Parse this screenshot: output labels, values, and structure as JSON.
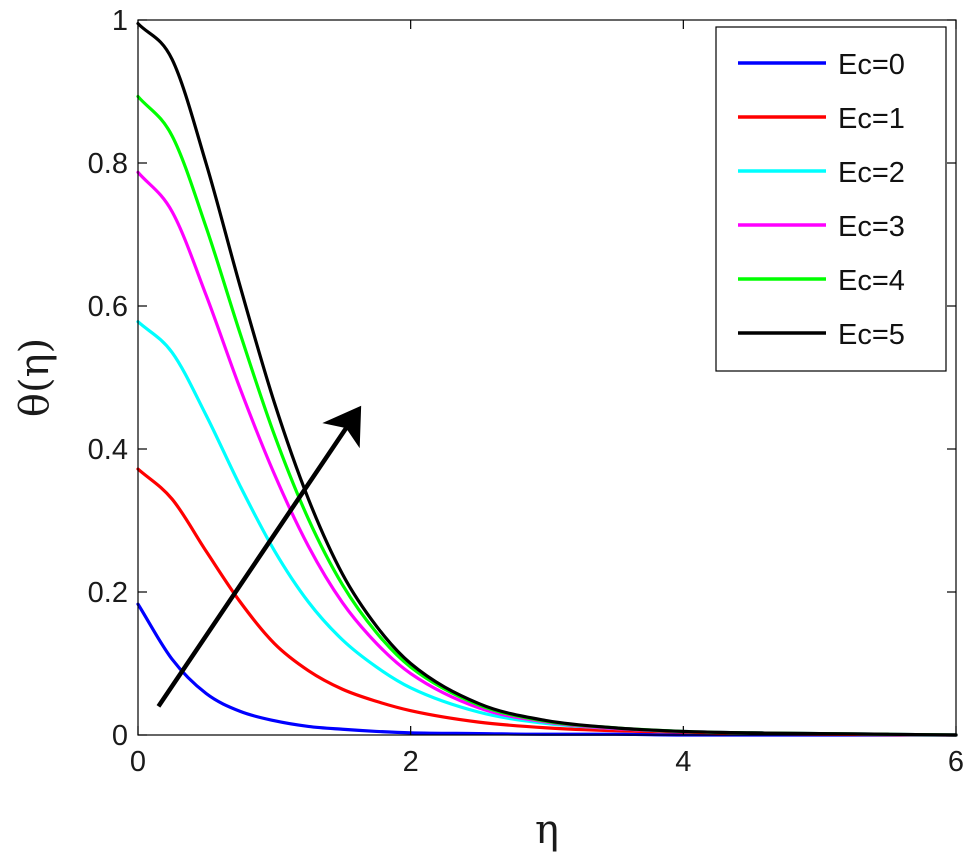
{
  "chart_data": {
    "type": "line",
    "title": "",
    "xlabel": "η",
    "ylabel": "θ(η)",
    "xlim": [
      0,
      6
    ],
    "ylim": [
      0,
      1
    ],
    "xticks": [
      0,
      2,
      4,
      6
    ],
    "xtick_labels": [
      "0",
      "2",
      "4",
      "6"
    ],
    "yticks": [
      0,
      0.2,
      0.4,
      0.6,
      0.8,
      1
    ],
    "ytick_labels": [
      "0",
      "0.2",
      "0.4",
      "0.6",
      "0.8",
      "1"
    ],
    "grid": false,
    "legend_position": "top-right",
    "x": [
      0,
      0.25,
      0.5,
      0.75,
      1,
      1.25,
      1.5,
      1.75,
      2,
      2.5,
      3,
      3.5,
      4,
      4.5,
      5,
      6
    ],
    "series": [
      {
        "name": "Ec=0",
        "color": "#0000ff",
        "values": [
          0.183,
          0.106,
          0.058,
          0.033,
          0.02,
          0.012,
          0.008,
          0.005,
          0.003,
          0.002,
          0.001,
          0.001,
          0.0,
          0.0,
          0.0,
          0.0
        ]
      },
      {
        "name": "Ec=1",
        "color": "#ff0000",
        "values": [
          0.372,
          0.33,
          0.257,
          0.186,
          0.128,
          0.09,
          0.064,
          0.047,
          0.034,
          0.018,
          0.01,
          0.006,
          0.004,
          0.002,
          0.001,
          0.0
        ]
      },
      {
        "name": "Ec=2",
        "color": "#00ffff",
        "values": [
          0.578,
          0.535,
          0.447,
          0.348,
          0.258,
          0.186,
          0.133,
          0.095,
          0.066,
          0.032,
          0.016,
          0.009,
          0.005,
          0.003,
          0.002,
          0.0
        ]
      },
      {
        "name": "Ec=3",
        "color": "#ff00ff",
        "values": [
          0.787,
          0.732,
          0.615,
          0.484,
          0.365,
          0.264,
          0.185,
          0.128,
          0.086,
          0.038,
          0.018,
          0.009,
          0.005,
          0.003,
          0.002,
          0.0
        ]
      },
      {
        "name": "Ec=4",
        "color": "#00ff00",
        "values": [
          0.893,
          0.838,
          0.71,
          0.561,
          0.42,
          0.302,
          0.21,
          0.143,
          0.095,
          0.042,
          0.019,
          0.01,
          0.005,
          0.003,
          0.002,
          0.0
        ]
      },
      {
        "name": "Ec=5",
        "color": "#000000",
        "values": [
          0.995,
          0.945,
          0.799,
          0.627,
          0.465,
          0.33,
          0.225,
          0.152,
          0.1,
          0.044,
          0.02,
          0.01,
          0.005,
          0.003,
          0.002,
          0.0
        ]
      }
    ],
    "annotation_arrow": {
      "direction": "increasing Ec",
      "from": [
        0.15,
        0.04
      ],
      "to": [
        1.6,
        0.45
      ]
    }
  }
}
